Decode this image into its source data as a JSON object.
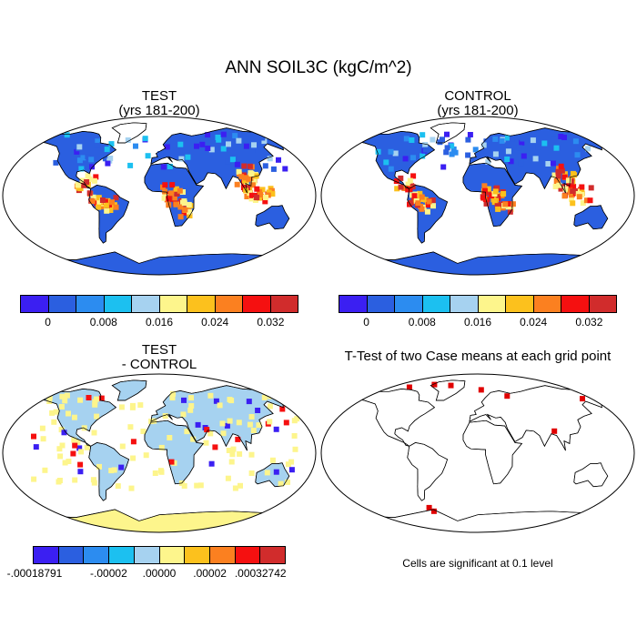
{
  "figure": {
    "title": "ANN SOIL3C (kgC/m^2)",
    "note": "Cells are significant at 0.1 level"
  },
  "panels": [
    {
      "id": "test",
      "title_line1": "TEST",
      "title_line2": "(yrs 181-200)"
    },
    {
      "id": "control",
      "title_line1": "CONTROL",
      "title_line2": "(yrs 181-200)"
    },
    {
      "id": "diff",
      "title_line1": "TEST",
      "title_line2": "- CONTROL"
    },
    {
      "id": "ttest",
      "title_line1": "T-Test of two Case means at each grid point",
      "title_line2": ""
    }
  ],
  "colorbars": {
    "absolute": {
      "colors": [
        "#3b1ff2",
        "#2b5fe0",
        "#2c8cf0",
        "#1cc0f0",
        "#a6d2f0",
        "#fdf58c",
        "#fcc11d",
        "#fb8020",
        "#f51010",
        "#d12c2c"
      ],
      "tick_labels": [
        "0",
        "0.008",
        "0.016",
        "0.024",
        "0.032"
      ]
    },
    "difference": {
      "colors": [
        "#3b1ff2",
        "#2b5fe0",
        "#2c8cf0",
        "#1cc0f0",
        "#a6d2f0",
        "#fdf58c",
        "#fcc11d",
        "#fb8020",
        "#f51010",
        "#d12c2c"
      ],
      "tick_labels": [
        "-.00018791",
        "-.00002",
        ".00000",
        ".00002",
        ".00032742"
      ]
    }
  },
  "palette": {
    "ocean": "#ffffff",
    "outline": "#000000",
    "land_dominant_abs": "#2b5fe0",
    "land_dominant_diff": "#a6d2f0",
    "significant": "#e00000"
  }
}
